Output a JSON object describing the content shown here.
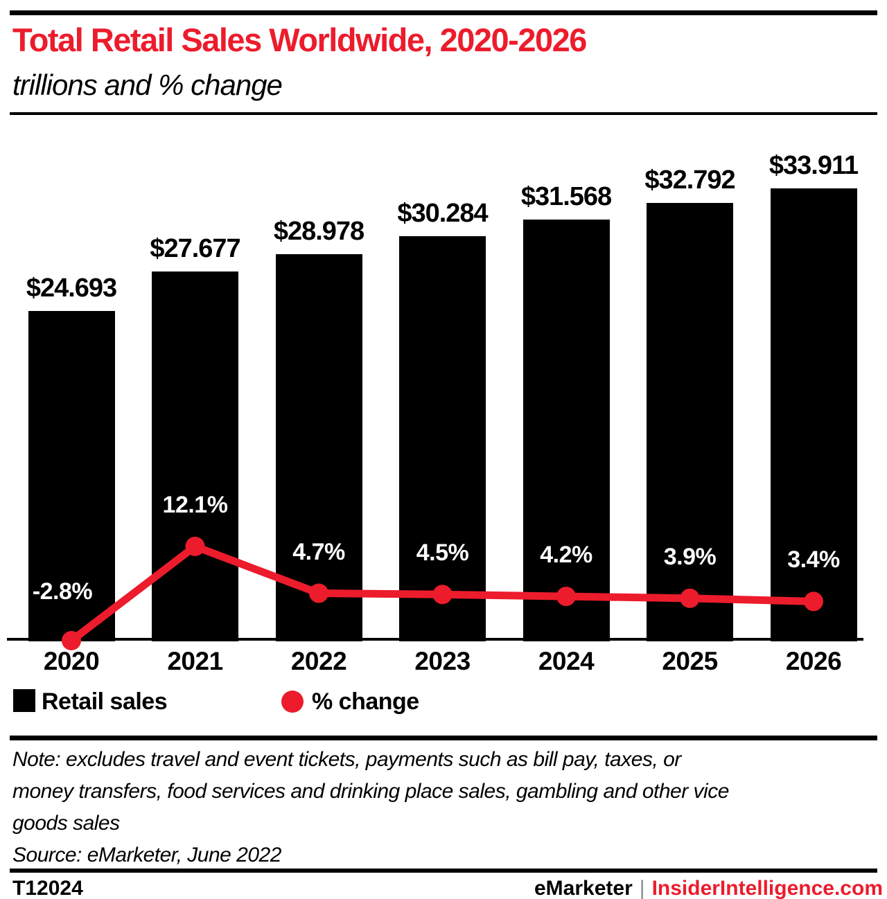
{
  "header": {
    "title": "Total Retail Sales Worldwide, 2020-2026",
    "subtitle": "trillions and % change",
    "title_color": "#ec1c2c"
  },
  "chart_data": {
    "type": "bar",
    "title": "Total Retail Sales Worldwide, 2020-2026",
    "subtitle": "trillions and % change",
    "categories": [
      "2020",
      "2021",
      "2022",
      "2023",
      "2024",
      "2025",
      "2026"
    ],
    "series": [
      {
        "name": "Retail sales",
        "type": "bar",
        "unit": "$ trillions",
        "values": [
          24.693,
          27.677,
          28.978,
          30.284,
          31.568,
          32.792,
          33.911
        ],
        "labels": [
          "$24.693",
          "$27.677",
          "$28.978",
          "$30.284",
          "$31.568",
          "$32.792",
          "$33.911"
        ],
        "color": "#000000"
      },
      {
        "name": "% change",
        "type": "line",
        "unit": "%",
        "values": [
          -2.8,
          12.1,
          4.7,
          4.5,
          4.2,
          3.9,
          3.4
        ],
        "labels": [
          "-2.8%",
          "12.1%",
          "4.7%",
          "4.5%",
          "4.2%",
          "3.9%",
          "3.4%"
        ],
        "color": "#ec1c2c"
      }
    ],
    "legend_position": "bottom-left",
    "grid": false,
    "value_labels_shown": true
  },
  "legend": {
    "retail_label": "Retail sales",
    "change_label": "% change"
  },
  "note": {
    "lines": [
      "Note: excludes travel and event tickets, payments such as bill pay, taxes, or",
      "money transfers, food services and drinking place sales, gambling and other vice",
      "goods sales"
    ],
    "source": "Source: eMarketer, June 2022"
  },
  "footer": {
    "chart_id": "T12024",
    "brand_left": "eMarketer",
    "separator": "|",
    "brand_right": "InsiderIntelligence.com",
    "brand_right_color": "#ec1c2c"
  }
}
